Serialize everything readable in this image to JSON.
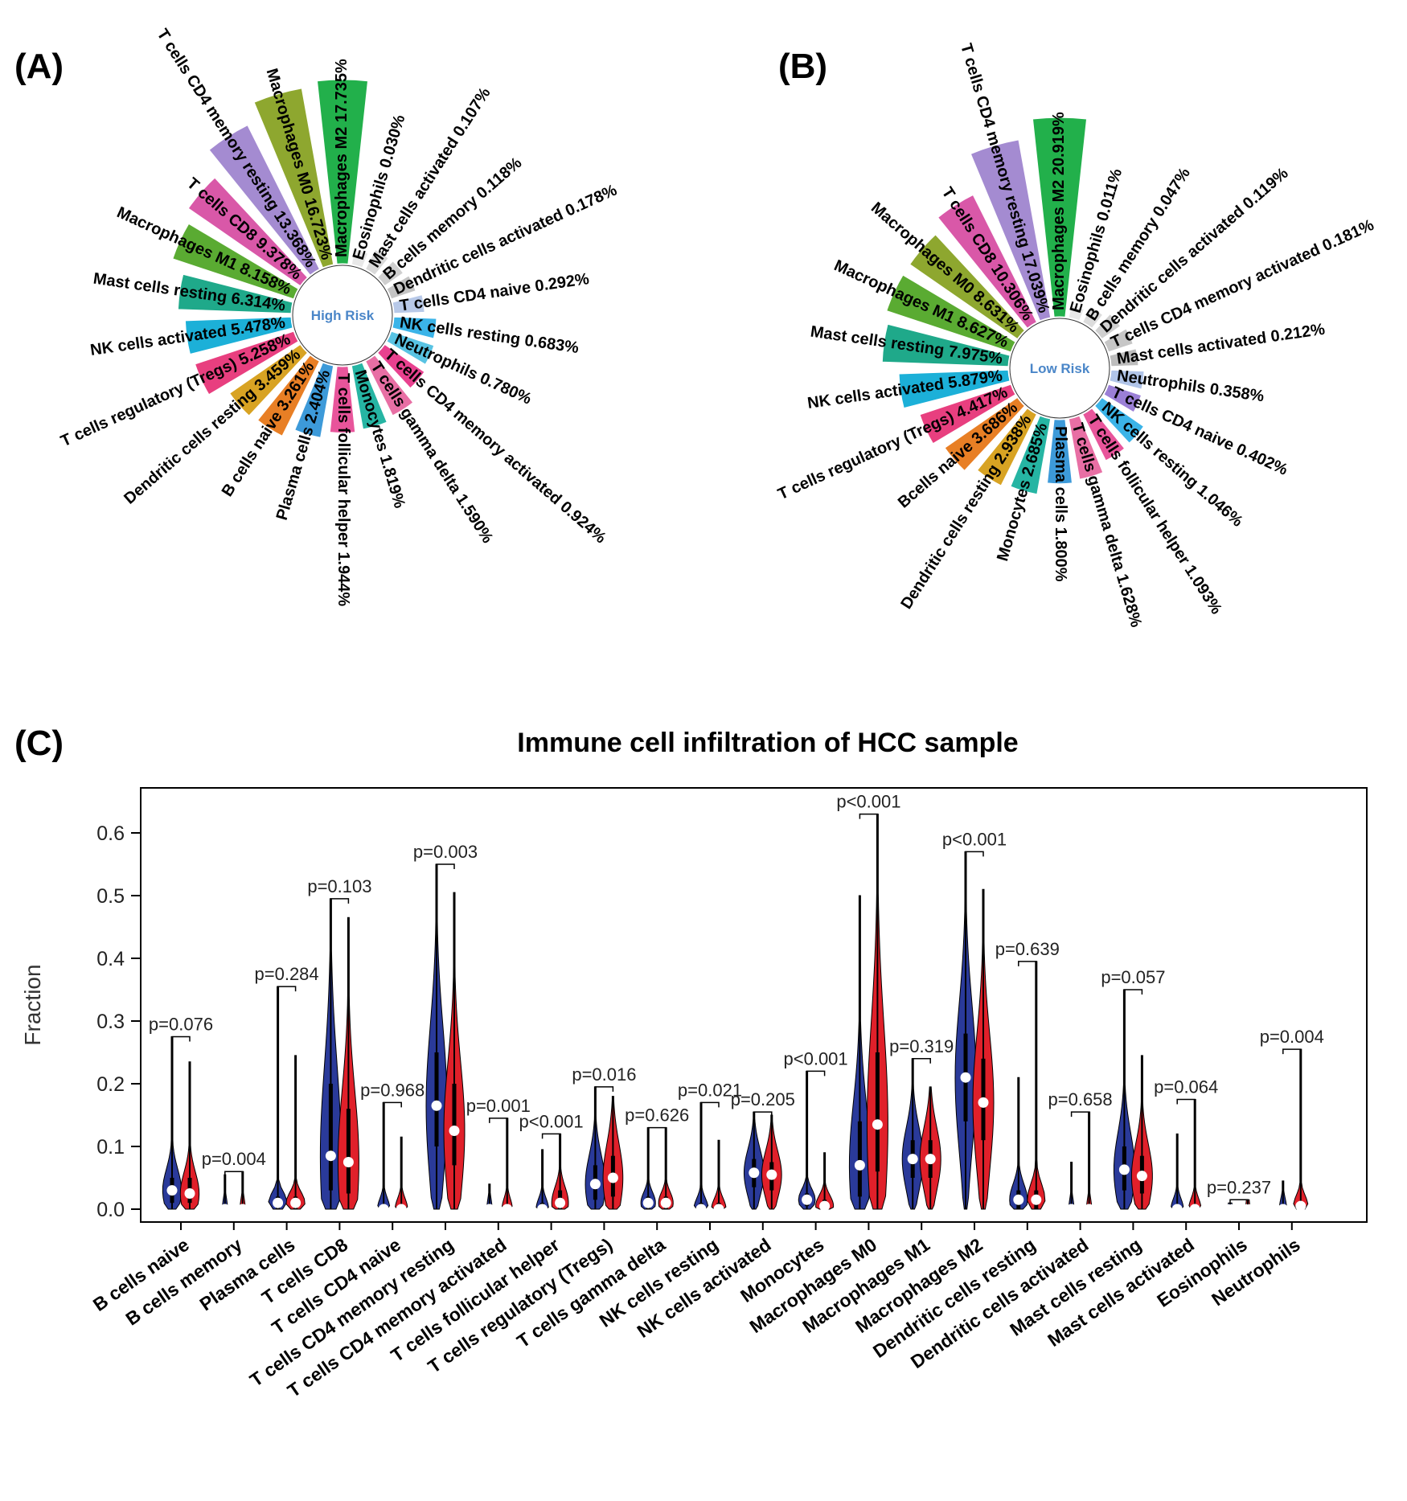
{
  "panels": {
    "a_label": "(A)",
    "b_label": "(B)",
    "c_label": "(C)"
  },
  "chart_data": [
    {
      "type": "radial-bar",
      "panel": "A",
      "center_label": "High Risk",
      "unit": "%",
      "slices": [
        {
          "name": "Macrophages M2",
          "value": "17.735",
          "color": "#22b04b"
        },
        {
          "name": "Eosinophils",
          "value": "0.030",
          "color": "#e8e8e8"
        },
        {
          "name": "Mast cells activated",
          "value": "0.107",
          "color": "#d9d9d9"
        },
        {
          "name": "B cells memory",
          "value": "0.118",
          "color": "#cfcfcf"
        },
        {
          "name": "Dendritic cells activated",
          "value": "0.178",
          "color": "#c4c4c4"
        },
        {
          "name": "T cells CD4 naive",
          "value": "0.292",
          "color": "#b8c9e8"
        },
        {
          "name": "NK cells resting",
          "value": "0.683",
          "color": "#3bb4e8"
        },
        {
          "name": "Neutrophils",
          "value": "0.780",
          "color": "#59c3e3"
        },
        {
          "name": "T cells CD4 memory activated",
          "value": "0.924",
          "color": "#e8418f"
        },
        {
          "name": "T cells gamma delta",
          "value": "1.590",
          "color": "#e86fa4"
        },
        {
          "name": "Monocytes",
          "value": "1.819",
          "color": "#26b5a3"
        },
        {
          "name": "T cells follicular helper",
          "value": "1.944",
          "color": "#e8559b"
        },
        {
          "name": "Plasma cells",
          "value": "2.404",
          "color": "#3d9ad9"
        },
        {
          "name": "B cells naive",
          "value": "3.261",
          "color": "#e87f25"
        },
        {
          "name": "Dendritic cells resting",
          "value": "3.459",
          "color": "#d8a323"
        },
        {
          "name": "T cells regulatory (Tregs)",
          "value": "5.258",
          "color": "#e83f7f"
        },
        {
          "name": "NK cells activated",
          "value": "5.478",
          "color": "#1cb0d8"
        },
        {
          "name": "Mast cells resting",
          "value": "6.314",
          "color": "#1fa98a"
        },
        {
          "name": "Macrophages M1",
          "value": "8.158",
          "color": "#5aab32"
        },
        {
          "name": "T cells CD8",
          "value": "9.378",
          "color": "#d958a8"
        },
        {
          "name": "T cells CD4 memory resting",
          "value": "13.368",
          "color": "#a48bd1"
        },
        {
          "name": "Macrophages M0",
          "value": "16.723",
          "color": "#8ea72f"
        }
      ]
    },
    {
      "type": "radial-bar",
      "panel": "B",
      "center_label": "Low Risk",
      "unit": "%",
      "slices": [
        {
          "name": "Macrophages M2",
          "value": "20.919",
          "color": "#22b04b"
        },
        {
          "name": "Eosinophils",
          "value": "0.011",
          "color": "#e8e8e8"
        },
        {
          "name": "B cells memory",
          "value": "0.047",
          "color": "#dcdcdc"
        },
        {
          "name": "Dendritic cells activated",
          "value": "0.119",
          "color": "#d0d0d0"
        },
        {
          "name": "T cells CD4 memory activated",
          "value": "0.181",
          "color": "#c6c6c6"
        },
        {
          "name": "Mast cells activated",
          "value": "0.212",
          "color": "#bdbdbd"
        },
        {
          "name": "Neutrophils",
          "value": "0.358",
          "color": "#b0c4e8"
        },
        {
          "name": "T cells CD4 naive",
          "value": "0.402",
          "color": "#9b7fd6"
        },
        {
          "name": "NK cells resting",
          "value": "1.046",
          "color": "#3bb4e8"
        },
        {
          "name": "T cells follicular helper",
          "value": "1.093",
          "color": "#e8559b"
        },
        {
          "name": "T cells gamma delta",
          "value": "1.628",
          "color": "#e86fa4"
        },
        {
          "name": "Plasma cells",
          "value": "1.800",
          "color": "#3d9ad9"
        },
        {
          "name": "Monocytes",
          "value": "2.685",
          "color": "#26b5a3"
        },
        {
          "name": "Dendritic cells resting",
          "value": "2.938",
          "color": "#d8a323"
        },
        {
          "name": "Bcells naive",
          "value": "3.686",
          "color": "#e87f25"
        },
        {
          "name": "T cells regulatory (Tregs)",
          "value": "4.417",
          "color": "#e83f7f"
        },
        {
          "name": "NK cells activated",
          "value": "5.879",
          "color": "#1cb0d8"
        },
        {
          "name": "Mast cells resting",
          "value": "7.975",
          "color": "#1fa98a"
        },
        {
          "name": "Macrophages M1",
          "value": "8.627",
          "color": "#5aab32"
        },
        {
          "name": "Macrophages M0",
          "value": "8.631",
          "color": "#8ea72f"
        },
        {
          "name": "T cells CD8",
          "value": "10.306",
          "color": "#d958a8"
        },
        {
          "name": "T cells CD4 memory resting",
          "value": "17.039",
          "color": "#a48bd1"
        }
      ]
    },
    {
      "type": "violin",
      "panel": "C",
      "title": "Immune cell infiltration of HCC sample",
      "ylabel": "Fraction",
      "xlabel": "",
      "ylim": [
        0,
        0.65
      ],
      "yticks": [
        "0.0",
        "0.1",
        "0.2",
        "0.3",
        "0.4",
        "0.5",
        "0.6"
      ],
      "series_colors": {
        "high": "#2a3a9a",
        "low": "#e0202a"
      },
      "groups": [
        {
          "name": "B cells naive",
          "p": "p=0.076",
          "high": {
            "median": 0.03,
            "q1": 0.01,
            "q3": 0.05,
            "max": 0.275,
            "w": 0.9
          },
          "low": {
            "median": 0.025,
            "q1": 0.01,
            "q3": 0.05,
            "max": 0.235,
            "w": 0.9
          }
        },
        {
          "name": "B cells memory",
          "p": "p=0.004",
          "high": {
            "median": 0.0,
            "q1": 0.0,
            "q3": 0.0,
            "max": 0.055,
            "w": 0.25
          },
          "low": {
            "median": 0.0,
            "q1": 0.0,
            "q3": 0.0,
            "max": 0.06,
            "w": 0.25
          }
        },
        {
          "name": "Plasma cells",
          "p": "p=0.284",
          "high": {
            "median": 0.01,
            "q1": 0.0,
            "q3": 0.02,
            "max": 0.355,
            "w": 0.9
          },
          "low": {
            "median": 0.01,
            "q1": 0.0,
            "q3": 0.02,
            "max": 0.245,
            "w": 0.9
          }
        },
        {
          "name": "T cells CD8",
          "p": "p=0.103",
          "high": {
            "median": 0.085,
            "q1": 0.03,
            "q3": 0.2,
            "max": 0.495,
            "w": 1.0
          },
          "low": {
            "median": 0.075,
            "q1": 0.025,
            "q3": 0.16,
            "max": 0.465,
            "w": 1.0
          }
        },
        {
          "name": "T cells CD4 naive",
          "p": "p=0.968",
          "high": {
            "median": 0.0,
            "q1": 0.0,
            "q3": 0.0,
            "max": 0.17,
            "w": 0.6
          },
          "low": {
            "median": 0.0,
            "q1": 0.0,
            "q3": 0.0,
            "max": 0.115,
            "w": 0.6
          }
        },
        {
          "name": "T cells CD4 memory resting",
          "p": "p=0.003",
          "high": {
            "median": 0.165,
            "q1": 0.1,
            "q3": 0.25,
            "max": 0.55,
            "w": 1.0
          },
          "low": {
            "median": 0.125,
            "q1": 0.07,
            "q3": 0.2,
            "max": 0.505,
            "w": 1.0
          }
        },
        {
          "name": "T cells CD4 memory activated",
          "p": "p=0.001",
          "high": {
            "median": 0.0,
            "q1": 0.0,
            "q3": 0.0,
            "max": 0.04,
            "w": 0.25
          },
          "low": {
            "median": 0.0,
            "q1": 0.0,
            "q3": 0.005,
            "max": 0.145,
            "w": 0.5
          }
        },
        {
          "name": "T cells follicular helper",
          "p": "p<0.001",
          "high": {
            "median": 0.0,
            "q1": 0.0,
            "q3": 0.01,
            "max": 0.095,
            "w": 0.6
          },
          "low": {
            "median": 0.01,
            "q1": 0.0,
            "q3": 0.03,
            "max": 0.12,
            "w": 0.8
          }
        },
        {
          "name": "T cells regulatory (Tregs)",
          "p": "p=0.016",
          "high": {
            "median": 0.04,
            "q1": 0.015,
            "q3": 0.07,
            "max": 0.195,
            "w": 0.95
          },
          "low": {
            "median": 0.05,
            "q1": 0.02,
            "q3": 0.085,
            "max": 0.18,
            "w": 0.95
          }
        },
        {
          "name": "T cells gamma delta",
          "p": "p=0.626",
          "high": {
            "median": 0.01,
            "q1": 0.0,
            "q3": 0.02,
            "max": 0.13,
            "w": 0.7
          },
          "low": {
            "median": 0.01,
            "q1": 0.0,
            "q3": 0.02,
            "max": 0.13,
            "w": 0.7
          }
        },
        {
          "name": "NK cells resting",
          "p": "p=0.021",
          "high": {
            "median": 0.0,
            "q1": 0.0,
            "q3": 0.01,
            "max": 0.17,
            "w": 0.7
          },
          "low": {
            "median": 0.0,
            "q1": 0.0,
            "q3": 0.01,
            "max": 0.11,
            "w": 0.7
          }
        },
        {
          "name": "NK cells activated",
          "p": "p=0.205",
          "high": {
            "median": 0.058,
            "q1": 0.035,
            "q3": 0.08,
            "max": 0.155,
            "w": 0.95
          },
          "low": {
            "median": 0.055,
            "q1": 0.03,
            "q3": 0.075,
            "max": 0.15,
            "w": 0.95
          }
        },
        {
          "name": "Monocytes",
          "p": "p<0.001",
          "high": {
            "median": 0.015,
            "q1": 0.005,
            "q3": 0.025,
            "max": 0.22,
            "w": 0.8
          },
          "low": {
            "median": 0.005,
            "q1": 0.0,
            "q3": 0.015,
            "max": 0.09,
            "w": 0.85
          }
        },
        {
          "name": "Macrophages M0",
          "p": "p<0.001",
          "high": {
            "median": 0.07,
            "q1": 0.02,
            "q3": 0.14,
            "max": 0.5,
            "w": 1.0
          },
          "low": {
            "median": 0.135,
            "q1": 0.06,
            "q3": 0.25,
            "max": 0.63,
            "w": 1.0
          }
        },
        {
          "name": "Macrophages M1",
          "p": "p=0.319",
          "high": {
            "median": 0.08,
            "q1": 0.05,
            "q3": 0.11,
            "max": 0.24,
            "w": 1.0
          },
          "low": {
            "median": 0.08,
            "q1": 0.05,
            "q3": 0.11,
            "max": 0.195,
            "w": 1.0
          }
        },
        {
          "name": "Macrophages M2",
          "p": "p<0.001",
          "high": {
            "median": 0.21,
            "q1": 0.14,
            "q3": 0.28,
            "max": 0.57,
            "w": 1.0
          },
          "low": {
            "median": 0.17,
            "q1": 0.11,
            "q3": 0.24,
            "max": 0.51,
            "w": 1.0
          }
        },
        {
          "name": "Dendritic cells resting",
          "p": "p=0.639",
          "high": {
            "median": 0.015,
            "q1": 0.0,
            "q3": 0.03,
            "max": 0.21,
            "w": 0.85
          },
          "low": {
            "median": 0.015,
            "q1": 0.0,
            "q3": 0.03,
            "max": 0.395,
            "w": 0.85
          }
        },
        {
          "name": "Dendritic cells activated",
          "p": "p=0.658",
          "high": {
            "median": 0.0,
            "q1": 0.0,
            "q3": 0.0,
            "max": 0.075,
            "w": 0.25
          },
          "low": {
            "median": 0.0,
            "q1": 0.0,
            "q3": 0.0,
            "max": 0.155,
            "w": 0.25
          }
        },
        {
          "name": "Mast cells resting",
          "p": "p=0.057",
          "high": {
            "median": 0.063,
            "q1": 0.03,
            "q3": 0.1,
            "max": 0.35,
            "w": 1.0
          },
          "low": {
            "median": 0.053,
            "q1": 0.025,
            "q3": 0.085,
            "max": 0.245,
            "w": 1.0
          }
        },
        {
          "name": "Mast cells activated",
          "p": "p=0.064",
          "high": {
            "median": 0.0,
            "q1": 0.0,
            "q3": 0.0,
            "max": 0.12,
            "w": 0.6
          },
          "low": {
            "median": 0.0,
            "q1": 0.0,
            "q3": 0.0,
            "max": 0.175,
            "w": 0.6
          }
        },
        {
          "name": "Eosinophils",
          "p": "p=0.237",
          "high": {
            "median": 0.0,
            "q1": 0.0,
            "q3": 0.0,
            "max": 0.01,
            "w": 0.2
          },
          "low": {
            "median": 0.0,
            "q1": 0.0,
            "q3": 0.0,
            "max": 0.015,
            "w": 0.2
          }
        },
        {
          "name": "Neutrophils",
          "p": "p=0.004",
          "high": {
            "median": 0.0,
            "q1": 0.0,
            "q3": 0.0,
            "max": 0.045,
            "w": 0.35
          },
          "low": {
            "median": 0.005,
            "q1": 0.0,
            "q3": 0.01,
            "max": 0.255,
            "w": 0.7
          }
        }
      ]
    }
  ]
}
